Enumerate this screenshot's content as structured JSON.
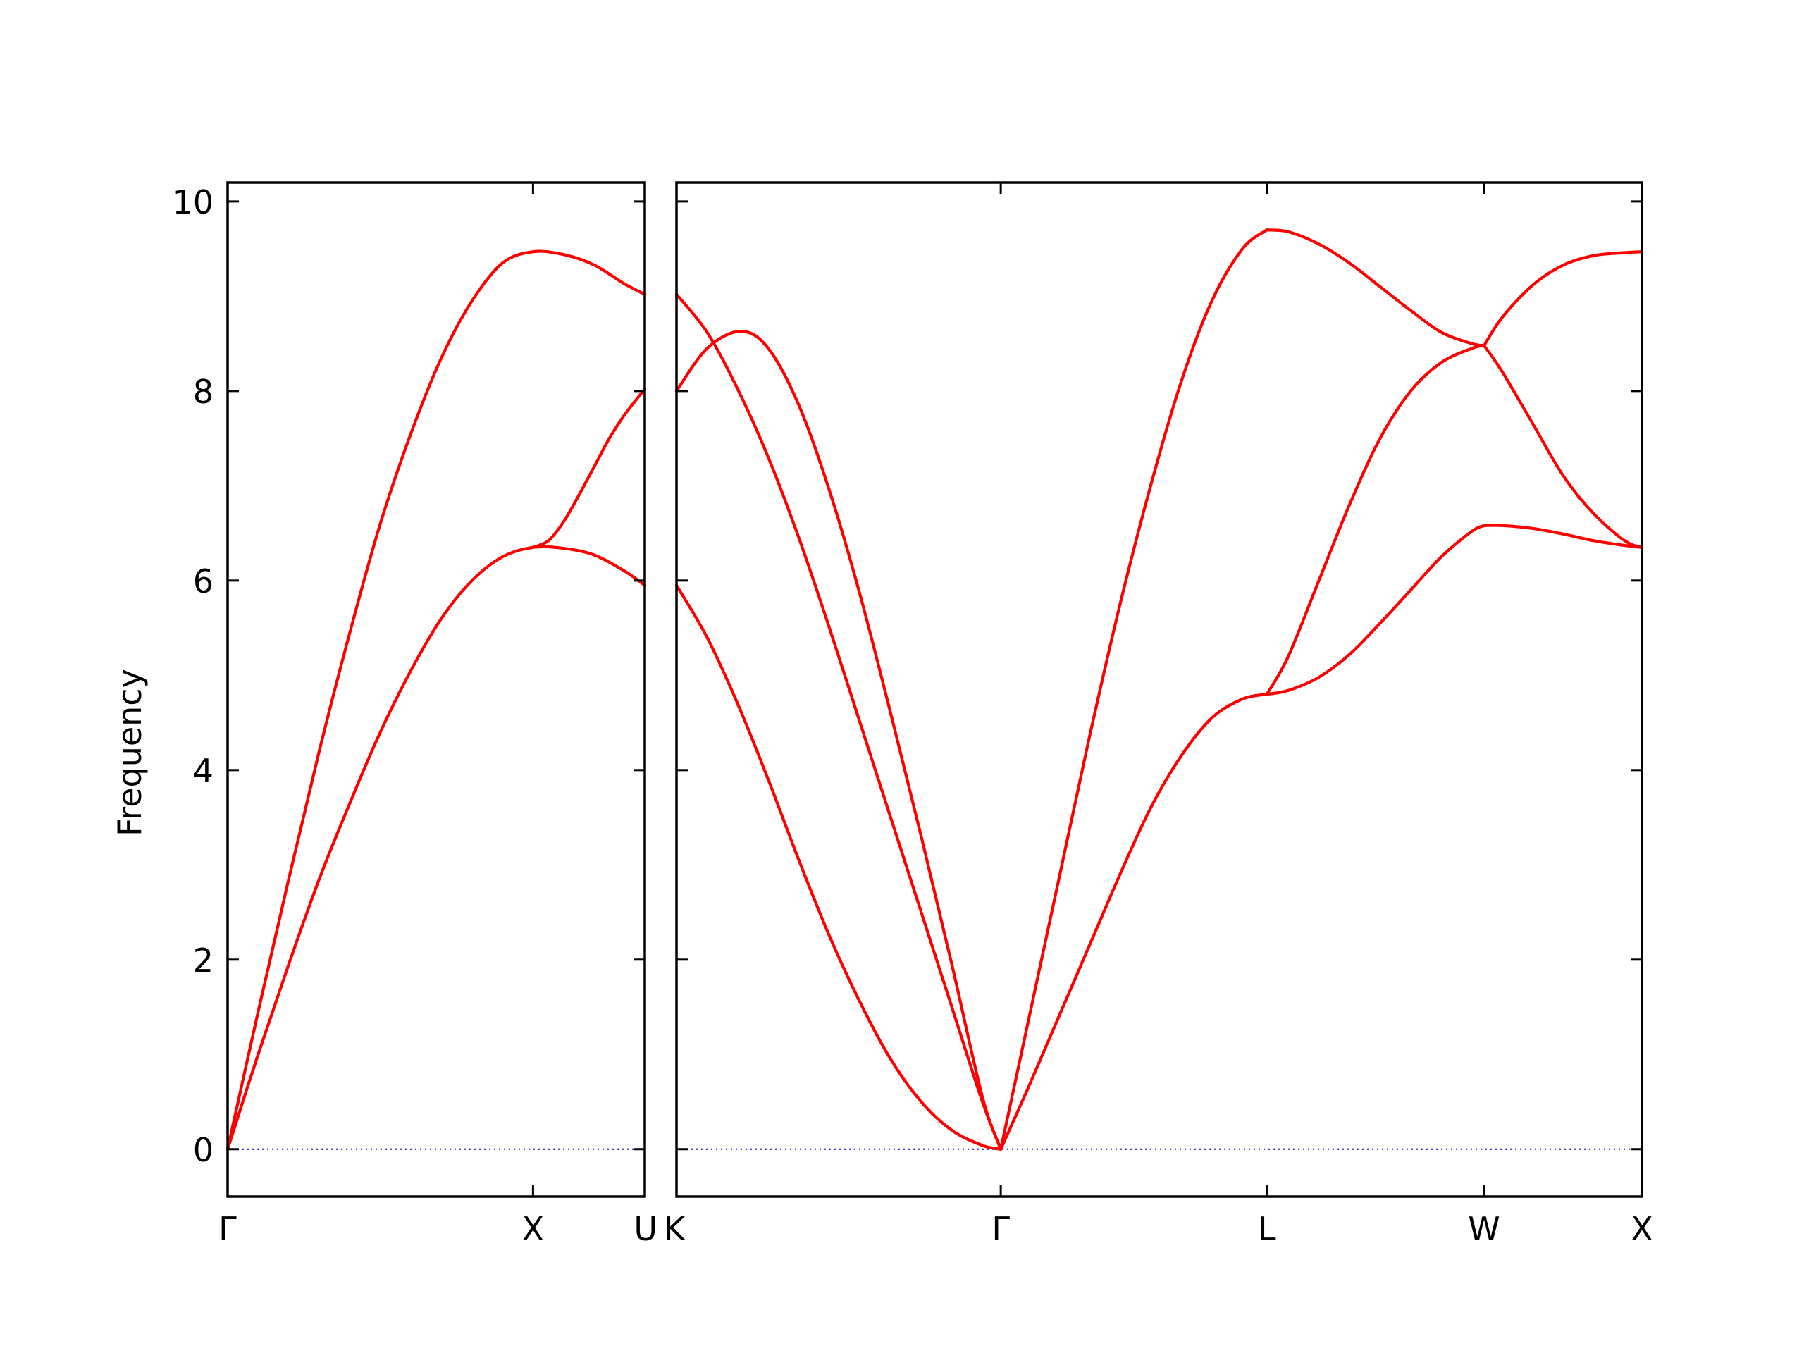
{
  "chart_data": {
    "type": "line",
    "title": "",
    "ylabel": "Frequency",
    "ylim": [
      -0.5,
      10.2
    ],
    "y_ticks": [
      0,
      2,
      4,
      6,
      8,
      10
    ],
    "grid": false,
    "line_color": "#ff0000",
    "zero_line_color": "#0000cc",
    "panels": [
      {
        "xlim": [
          0,
          1.366
        ],
        "x_ticks": [
          {
            "label": "Γ",
            "x": 0
          },
          {
            "label": "X",
            "x": 1.0
          },
          {
            "label": "U",
            "x": 1.366
          }
        ],
        "series": [
          {
            "x": [
              0,
              0.1,
              0.2,
              0.3,
              0.4,
              0.5,
              0.6,
              0.7,
              0.8,
              0.9,
              1.0,
              1.1,
              1.2,
              1.3,
              1.366
            ],
            "y": [
              0,
              1.45,
              2.85,
              4.2,
              5.45,
              6.6,
              7.55,
              8.35,
              8.95,
              9.35,
              9.47,
              9.44,
              9.33,
              9.13,
              9.02
            ]
          },
          {
            "x": [
              0,
              0.1,
              0.2,
              0.3,
              0.4,
              0.5,
              0.6,
              0.7,
              0.8,
              0.9,
              1.0,
              1.1,
              1.2,
              1.3,
              1.366
            ],
            "y": [
              0,
              1.0,
              1.95,
              2.85,
              3.65,
              4.4,
              5.05,
              5.6,
              6.0,
              6.25,
              6.35,
              6.34,
              6.27,
              6.1,
              5.95
            ]
          },
          {
            "x": [
              1.0,
              1.05,
              1.1,
              1.15,
              1.2,
              1.25,
              1.3,
              1.366
            ],
            "y": [
              6.35,
              6.42,
              6.62,
              6.9,
              7.2,
              7.5,
              7.75,
              8.02
            ]
          }
        ]
      },
      {
        "xlim": [
          0,
          3.156
        ],
        "x_ticks": [
          {
            "label": "K",
            "x": 0
          },
          {
            "label": "Γ",
            "x": 1.06
          },
          {
            "label": "L",
            "x": 1.93
          },
          {
            "label": "W",
            "x": 2.64
          },
          {
            "label": "X",
            "x": 3.156
          }
        ],
        "series": [
          {
            "x": [
              0,
              0.1,
              0.2,
              0.3,
              0.4,
              0.5,
              0.6,
              0.7,
              0.8,
              0.9,
              1.0,
              1.06
            ],
            "y": [
              9.02,
              8.62,
              8.02,
              7.3,
              6.45,
              5.5,
              4.5,
              3.5,
              2.5,
              1.5,
              0.5,
              0
            ]
          },
          {
            "x": [
              0,
              0.1,
              0.21,
              0.3,
              0.4,
              0.5,
              0.6,
              0.7,
              0.8,
              0.9,
              1.0,
              1.06
            ],
            "y": [
              8.0,
              8.45,
              8.63,
              8.45,
              7.85,
              6.95,
              5.85,
              4.6,
              3.3,
              1.95,
              0.55,
              0
            ]
          },
          {
            "x": [
              0,
              0.1,
              0.2,
              0.3,
              0.4,
              0.5,
              0.6,
              0.7,
              0.8,
              0.9,
              1.0,
              1.06
            ],
            "y": [
              5.95,
              5.4,
              4.7,
              3.9,
              3.05,
              2.25,
              1.55,
              0.95,
              0.5,
              0.2,
              0.04,
              0
            ]
          },
          {
            "x": [
              1.06,
              1.15,
              1.25,
              1.35,
              1.45,
              1.55,
              1.65,
              1.75,
              1.85,
              1.93
            ],
            "y": [
              0,
              1.35,
              2.85,
              4.35,
              5.75,
              7.0,
              8.1,
              8.95,
              9.5,
              9.7
            ]
          },
          {
            "x": [
              1.06,
              1.15,
              1.25,
              1.35,
              1.45,
              1.55,
              1.65,
              1.75,
              1.85,
              1.93
            ],
            "y": [
              0,
              0.65,
              1.4,
              2.15,
              2.9,
              3.6,
              4.15,
              4.55,
              4.75,
              4.8
            ]
          },
          {
            "x": [
              1.93,
              2.0,
              2.1,
              2.2,
              2.3,
              2.4,
              2.5,
              2.6,
              2.64
            ],
            "y": [
              9.7,
              9.68,
              9.55,
              9.35,
              9.1,
              8.85,
              8.62,
              8.5,
              8.48
            ]
          },
          {
            "x": [
              1.93,
              2.0,
              2.1,
              2.2,
              2.3,
              2.4,
              2.5,
              2.6,
              2.64
            ],
            "y": [
              4.8,
              5.2,
              6.0,
              6.8,
              7.5,
              8.0,
              8.3,
              8.45,
              8.48
            ]
          },
          {
            "x": [
              1.93,
              2.0,
              2.1,
              2.2,
              2.3,
              2.4,
              2.5,
              2.6,
              2.64
            ],
            "y": [
              4.8,
              4.84,
              4.98,
              5.22,
              5.55,
              5.9,
              6.25,
              6.52,
              6.58
            ]
          },
          {
            "x": [
              2.64,
              2.7,
              2.8,
              2.9,
              3.0,
              3.1,
              3.156
            ],
            "y": [
              8.48,
              8.78,
              9.12,
              9.33,
              9.43,
              9.46,
              9.47
            ]
          },
          {
            "x": [
              2.64,
              2.7,
              2.8,
              2.9,
              3.0,
              3.1,
              3.156
            ],
            "y": [
              8.48,
              8.2,
              7.65,
              7.1,
              6.7,
              6.42,
              6.35
            ]
          },
          {
            "x": [
              2.64,
              2.7,
              2.8,
              2.9,
              3.0,
              3.1,
              3.156
            ],
            "y": [
              6.58,
              6.58,
              6.55,
              6.49,
              6.42,
              6.37,
              6.35
            ]
          }
        ]
      }
    ]
  }
}
